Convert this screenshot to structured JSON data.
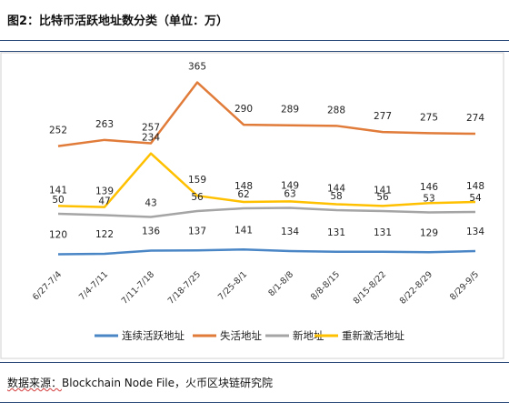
{
  "figure": {
    "title": "图2：比特币活跃地址数分类（单位：万）",
    "source_prefix": "数据来源：",
    "source_text": "Blockchain Node File，火币区块链研究院"
  },
  "chart_data": {
    "type": "line",
    "categories": [
      "6/27-7/4",
      "7/4-7/11",
      "7/11-7/18",
      "7/18-7/25",
      "7/25-8/1",
      "8/1-8/8",
      "8/8-8/15",
      "8/15-8/22",
      "8/22-8/29",
      "8/29-9/5"
    ],
    "series": [
      {
        "name": "连续活跃地址",
        "color": "#4a86c6",
        "values": [
          120,
          122,
          136,
          137,
          141,
          134,
          131,
          131,
          129,
          134
        ],
        "labels_shown": [
          true,
          true,
          true,
          true,
          true,
          true,
          true,
          true,
          true,
          true
        ]
      },
      {
        "name": "失活地址",
        "color": "#e07b39",
        "values": [
          252,
          263,
          257,
          365,
          290,
          289,
          288,
          277,
          275,
          274
        ],
        "labels_shown": [
          true,
          true,
          true,
          true,
          true,
          true,
          true,
          true,
          true,
          true
        ]
      },
      {
        "name": "新地址",
        "color": "#a5a5a5",
        "values": [
          50,
          47,
          43,
          56,
          62,
          63,
          58,
          56,
          53,
          54
        ],
        "labels_shown": [
          true,
          true,
          true,
          true,
          true,
          true,
          true,
          true,
          true,
          true
        ]
      },
      {
        "name": "重新激活地址",
        "color": "#ffc000",
        "values": [
          141,
          139,
          234,
          159,
          148,
          149,
          144,
          141,
          146,
          148
        ],
        "labels_shown": [
          true,
          true,
          true,
          true,
          true,
          true,
          true,
          true,
          true,
          true
        ]
      }
    ],
    "legend_position": "bottom",
    "grid": false
  }
}
